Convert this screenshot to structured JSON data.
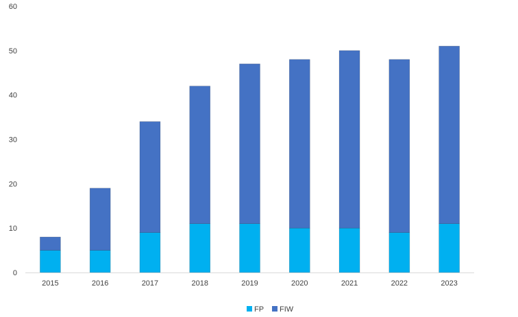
{
  "chart_data": {
    "type": "bar",
    "stacked": true,
    "categories": [
      "2015",
      "2016",
      "2017",
      "2018",
      "2019",
      "2020",
      "2021",
      "2022",
      "2023"
    ],
    "series": [
      {
        "name": "FP",
        "color": "#00b0f0",
        "values": [
          5,
          5,
          9,
          11,
          11,
          10,
          10,
          9,
          11
        ]
      },
      {
        "name": "FIW",
        "color": "#4472c4",
        "values": [
          3,
          14,
          25,
          31,
          36,
          38,
          40,
          39,
          40
        ]
      }
    ],
    "ylim": [
      0,
      60
    ],
    "yticks": [
      0,
      10,
      20,
      30,
      40,
      50,
      60
    ],
    "grid": false,
    "legend_position": "bottom"
  }
}
